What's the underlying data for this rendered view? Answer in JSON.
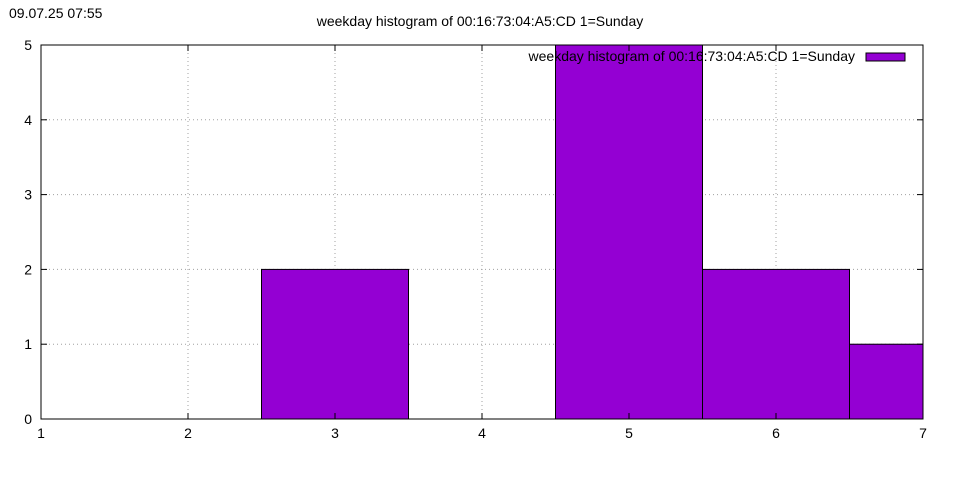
{
  "timestamp": "09.07.25 07:55",
  "chart_data": {
    "type": "bar",
    "title": "weekday histogram of 00:16:73:04:A5:CD 1=Sunday",
    "xlabel": "",
    "ylabel": "",
    "xlim": [
      1,
      7
    ],
    "ylim": [
      0,
      5
    ],
    "x_ticks": [
      "1",
      "2",
      "3",
      "4",
      "5",
      "6",
      "7"
    ],
    "y_ticks": [
      "0",
      "1",
      "2",
      "3",
      "4",
      "5"
    ],
    "grid": true,
    "legend_position": "top-right",
    "bar_width": 1,
    "series": [
      {
        "name": "weekday histogram of 00:16:73:04:A5:CD 1=Sunday",
        "color": "#9400d3",
        "x": [
          3,
          5,
          6,
          7
        ],
        "values": [
          2,
          5,
          2,
          1
        ]
      }
    ]
  }
}
